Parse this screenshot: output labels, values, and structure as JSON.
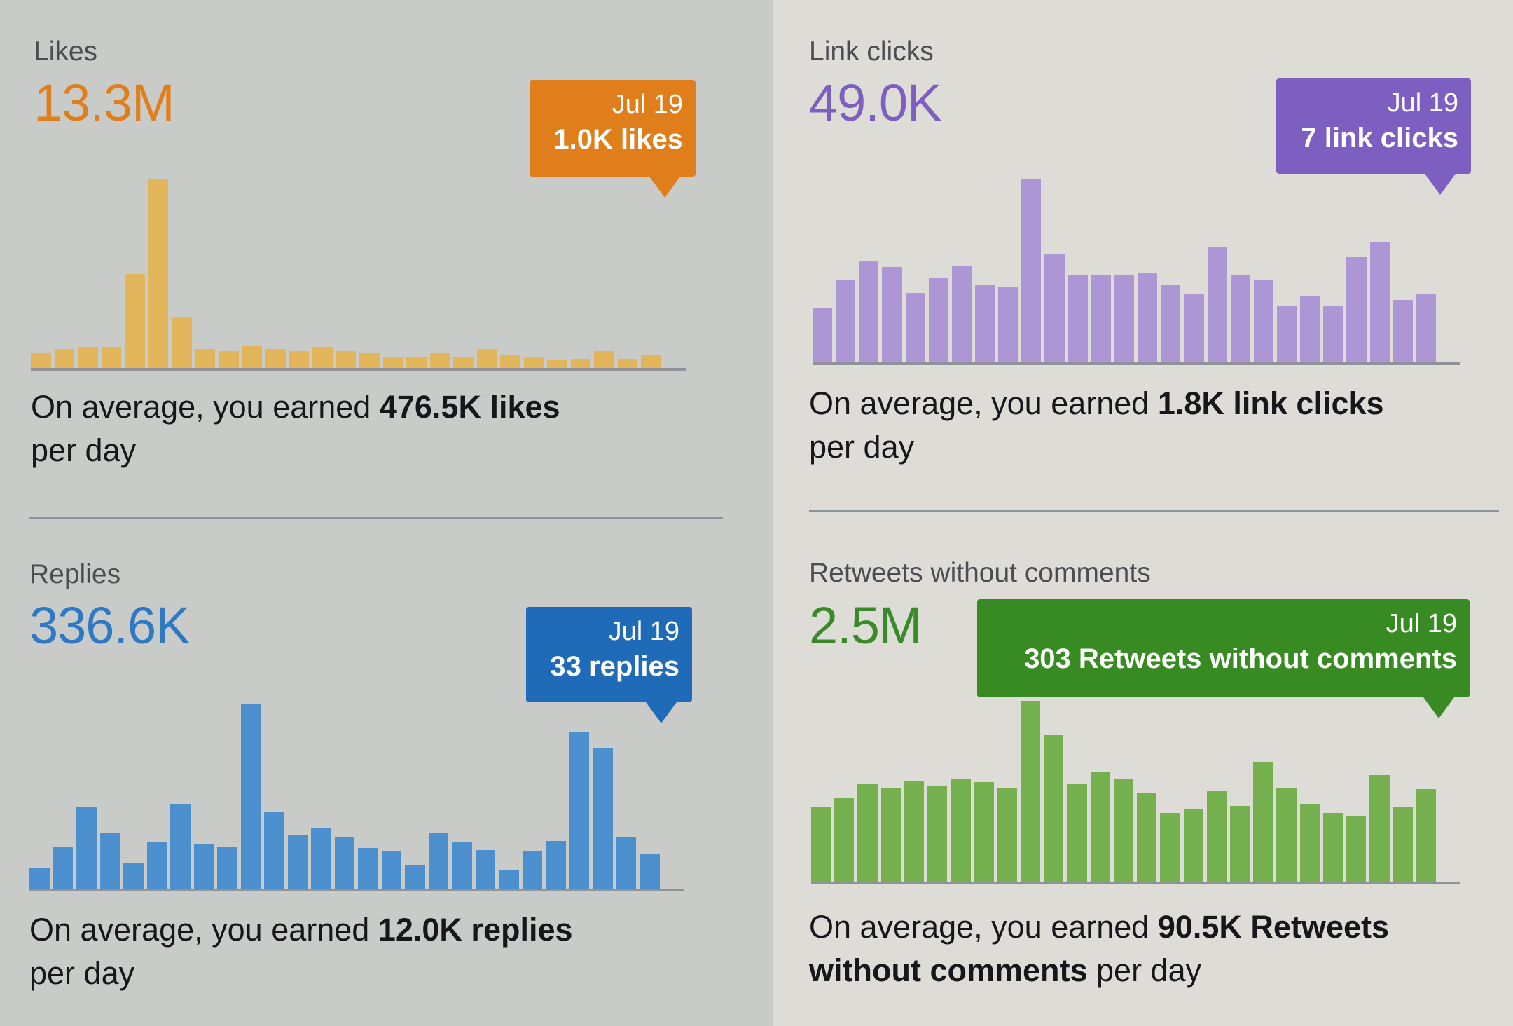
{
  "cards": [
    {
      "id": "likes",
      "label": "Likes",
      "total": "13.3M",
      "color": "#e07e1b",
      "bar_color": "#e2b55a",
      "tooltip": {
        "date": "Jul 19",
        "value": "1.0K likes"
      },
      "summary": {
        "prefix": "On average, you earned ",
        "value": "476.5K likes",
        "suffix": " per day"
      }
    },
    {
      "id": "link-clicks",
      "label": "Link clicks",
      "total": "49.0K",
      "color": "#7d5fc1",
      "bar_color": "#ad96d6",
      "tooltip": {
        "date": "Jul 19",
        "value": "7 link clicks"
      },
      "summary": {
        "prefix": "On average, you earned ",
        "value": "1.8K link clicks",
        "suffix": " per day"
      }
    },
    {
      "id": "replies",
      "label": "Replies",
      "total": "336.6K",
      "color": "#2f78c2",
      "bar_color": "#4b8fcf",
      "tooltip": {
        "date": "Jul 19",
        "value": "33 replies"
      },
      "summary": {
        "prefix": "On average, you earned ",
        "value": "12.0K replies",
        "suffix": " per day"
      }
    },
    {
      "id": "retweets",
      "label": "Retweets without comments",
      "total": "2.5M",
      "color": "#3a8a2a",
      "bar_color": "#74b04e",
      "tooltip": {
        "date": "Jul 19",
        "value": "303 Retweets without comments"
      },
      "summary": {
        "prefix": "On average, you earned ",
        "value": "90.5K Retweets without comments",
        "suffix": " per day"
      }
    }
  ],
  "chart_data": [
    {
      "type": "bar",
      "title": "Likes",
      "unit": "relative (% of max)",
      "values": [
        8,
        10,
        11,
        11,
        50,
        100,
        27,
        10,
        9,
        12,
        10,
        9,
        11,
        9,
        8,
        6,
        6,
        8,
        6,
        10,
        7,
        6,
        4,
        5,
        9,
        5,
        7
      ]
    },
    {
      "type": "bar",
      "title": "Link clicks",
      "unit": "relative (% of max)",
      "values": [
        30,
        45,
        55,
        52,
        38,
        46,
        53,
        42,
        41,
        100,
        59,
        48,
        48,
        48,
        49,
        42,
        37,
        63,
        48,
        45,
        31,
        36,
        31,
        58,
        66,
        34,
        37
      ]
    },
    {
      "type": "bar",
      "title": "Replies",
      "unit": "relative (% of max)",
      "values": [
        11,
        23,
        44,
        30,
        14,
        25,
        46,
        24,
        23,
        100,
        42,
        29,
        33,
        28,
        22,
        20,
        13,
        30,
        25,
        21,
        10,
        20,
        26,
        85,
        76,
        28,
        19
      ]
    },
    {
      "type": "bar",
      "title": "Retweets without comments",
      "unit": "relative (% of max)",
      "values": [
        41,
        46,
        54,
        52,
        56,
        53,
        57,
        55,
        52,
        100,
        81,
        54,
        61,
        57,
        49,
        38,
        40,
        50,
        42,
        66,
        52,
        43,
        38,
        36,
        59,
        41,
        51
      ]
    }
  ]
}
